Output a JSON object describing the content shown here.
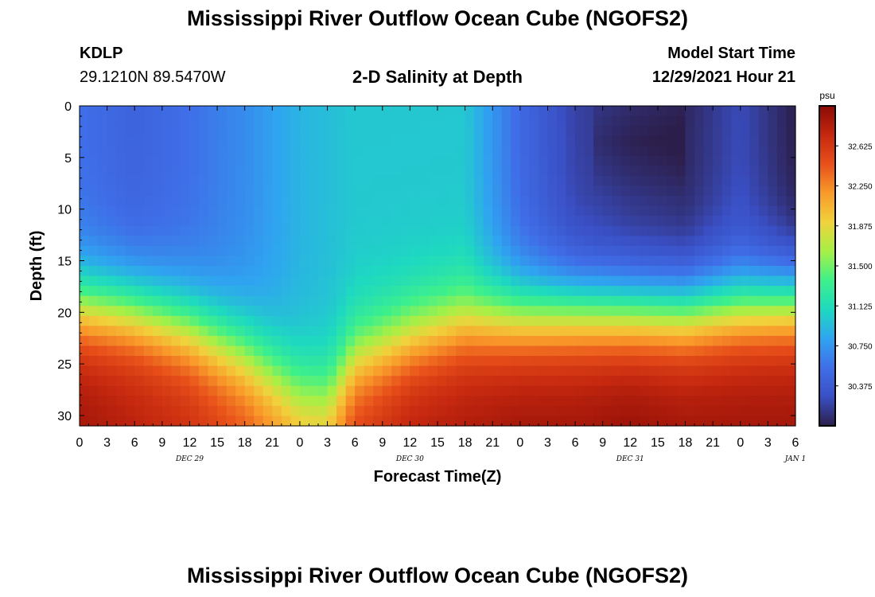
{
  "header": {
    "title": "Mississippi River Outflow Ocean Cube (NGOFS2)",
    "station": "KDLP",
    "coords": "29.1210N  89.5470W",
    "subtitle": "2-D Salinity at Depth",
    "model_start_label": "Model Start Time",
    "model_start_value": "12/29/2021 Hour 21"
  },
  "footer": {
    "title": "Mississippi River Outflow Ocean Cube (NGOFS2)"
  },
  "chart_data": {
    "type": "heatmap",
    "title": "2-D Salinity at Depth",
    "xlabel": "Forecast Time(Z)",
    "ylabel": "Depth (ft)",
    "x_tick_labels": [
      "0",
      "3",
      "6",
      "9",
      "12",
      "15",
      "18",
      "21",
      "0",
      "3",
      "6",
      "9",
      "12",
      "15",
      "18",
      "21",
      "0",
      "3",
      "6",
      "9",
      "12",
      "15",
      "18",
      "21",
      "0",
      "3",
      "6"
    ],
    "date_labels": [
      {
        "label": "DEC 29",
        "at_hour": 12
      },
      {
        "label": "DEC 30",
        "at_hour": 36
      },
      {
        "label": "DEC 31",
        "at_hour": 60
      },
      {
        "label": "JAN 1",
        "at_hour": 78
      }
    ],
    "xlim": [
      0,
      78
    ],
    "ylim": [
      0,
      31
    ],
    "y_ticks": [
      0,
      5,
      10,
      15,
      20,
      25,
      30
    ],
    "y_inverted": true,
    "colorbar": {
      "unit": "psu",
      "min": 30.0,
      "max": 33.0,
      "tick_labels": [
        "30.375",
        "30.750",
        "31.125",
        "31.500",
        "31.875",
        "32.250",
        "32.625"
      ],
      "colors": [
        "#2c1e4a",
        "#3a4fc4",
        "#3f6ee8",
        "#2fa4f0",
        "#1ed9c0",
        "#3ef08a",
        "#a6f046",
        "#f0d23c",
        "#f99a2a",
        "#e8501a",
        "#c5280f",
        "#8a0a06"
      ]
    },
    "grid": false,
    "legend": "right colorbar",
    "description_of_field": [
      {
        "time_h": 0,
        "surface_psu": 30.55,
        "cline_depth_ft": 19.5,
        "bottom_psu": 32.9
      },
      {
        "time_h": 6,
        "surface_psu": 30.45,
        "cline_depth_ft": 20.0,
        "bottom_psu": 32.8
      },
      {
        "time_h": 12,
        "surface_psu": 30.55,
        "cline_depth_ft": 21.5,
        "bottom_psu": 32.7
      },
      {
        "time_h": 18,
        "surface_psu": 30.7,
        "cline_depth_ft": 24.0,
        "bottom_psu": 32.5
      },
      {
        "time_h": 24,
        "surface_psu": 30.9,
        "cline_depth_ft": 27.5,
        "bottom_psu": 32.2
      },
      {
        "time_h": 27,
        "surface_psu": 30.95,
        "cline_depth_ft": 28.0,
        "bottom_psu": 32.2
      },
      {
        "time_h": 30,
        "surface_psu": 31.0,
        "cline_depth_ft": 24.5,
        "bottom_psu": 32.6
      },
      {
        "time_h": 36,
        "surface_psu": 31.0,
        "cline_depth_ft": 22.5,
        "bottom_psu": 32.8
      },
      {
        "time_h": 42,
        "surface_psu": 31.0,
        "cline_depth_ft": 21.0,
        "bottom_psu": 32.85
      },
      {
        "time_h": 48,
        "surface_psu": 30.5,
        "cline_depth_ft": 20.5,
        "bottom_psu": 32.9
      },
      {
        "time_h": 54,
        "surface_psu": 30.2,
        "cline_depth_ft": 20.0,
        "bottom_psu": 32.9
      },
      {
        "time_h": 60,
        "surface_psu": 30.1,
        "cline_depth_ft": 20.0,
        "bottom_psu": 32.95
      },
      {
        "time_h": 66,
        "surface_psu": 30.05,
        "cline_depth_ft": 20.0,
        "bottom_psu": 32.9
      },
      {
        "time_h": 72,
        "surface_psu": 30.25,
        "cline_depth_ft": 19.5,
        "bottom_psu": 32.9
      },
      {
        "time_h": 78,
        "surface_psu": 30.0,
        "cline_depth_ft": 19.0,
        "bottom_psu": 32.9
      }
    ]
  }
}
